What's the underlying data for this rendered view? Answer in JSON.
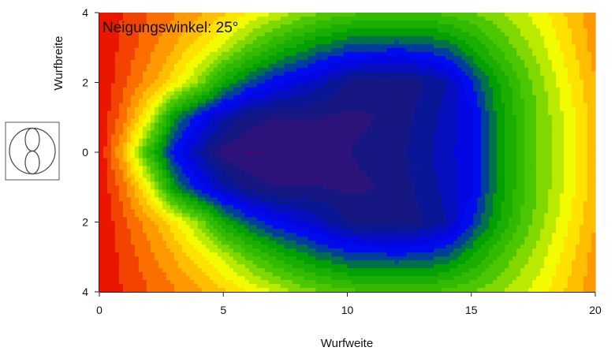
{
  "chart_data": {
    "type": "heatmap",
    "title": "",
    "annotation": "Neigungswinkel: 25°",
    "xlabel": "Wurfweite",
    "ylabel": "Wurfbreite",
    "xlim": [
      0,
      20
    ],
    "ylim": [
      -4,
      4
    ],
    "x_ticks": [
      0,
      5,
      10,
      15,
      20
    ],
    "x_tick_labels": [
      "0",
      "5",
      "10",
      "15",
      "20"
    ],
    "y_ticks": [
      4,
      2,
      0,
      -2,
      -4
    ],
    "y_tick_labels": [
      "4",
      "2",
      "0",
      "2",
      "4"
    ],
    "grid": false,
    "legend": "none",
    "colorscale": [
      "#4b0c6b",
      "#0a1a8a",
      "#0000ff",
      "#00a000",
      "#4cc800",
      "#ffff00",
      "#ff8c00",
      "#e60000"
    ],
    "x": [
      0,
      1,
      1.5,
      2,
      2.5,
      3,
      4,
      5,
      6,
      7,
      8,
      9,
      10,
      11,
      12,
      13,
      14,
      15,
      16,
      17,
      18,
      19,
      20
    ],
    "y": [
      -4,
      -3,
      -2,
      -1,
      0,
      1,
      2,
      3,
      4
    ],
    "z": [
      [
        1.0,
        0.95,
        0.93,
        0.91,
        0.89,
        0.87,
        0.83,
        0.78,
        0.73,
        0.68,
        0.63,
        0.59,
        0.56,
        0.55,
        0.54,
        0.54,
        0.56,
        0.59,
        0.62,
        0.67,
        0.72,
        0.79,
        0.85
      ],
      [
        1.0,
        0.94,
        0.91,
        0.88,
        0.85,
        0.82,
        0.75,
        0.67,
        0.58,
        0.5,
        0.44,
        0.39,
        0.35,
        0.34,
        0.33,
        0.34,
        0.37,
        0.45,
        0.54,
        0.61,
        0.68,
        0.76,
        0.84
      ],
      [
        1.0,
        0.92,
        0.88,
        0.84,
        0.8,
        0.74,
        0.62,
        0.46,
        0.36,
        0.29,
        0.24,
        0.19,
        0.13,
        0.11,
        0.11,
        0.13,
        0.18,
        0.31,
        0.44,
        0.55,
        0.64,
        0.73,
        0.82
      ],
      [
        1.0,
        0.88,
        0.8,
        0.7,
        0.57,
        0.42,
        0.29,
        0.19,
        0.12,
        0.09,
        0.09,
        0.09,
        0.08,
        0.09,
        0.11,
        0.15,
        0.2,
        0.26,
        0.41,
        0.53,
        0.62,
        0.71,
        0.8
      ],
      [
        1.0,
        0.8,
        0.66,
        0.52,
        0.4,
        0.3,
        0.18,
        0.07,
        0.04,
        0.05,
        0.07,
        0.09,
        0.09,
        0.1,
        0.12,
        0.16,
        0.21,
        0.26,
        0.41,
        0.53,
        0.62,
        0.71,
        0.8
      ],
      [
        1.0,
        0.88,
        0.8,
        0.7,
        0.57,
        0.42,
        0.29,
        0.19,
        0.12,
        0.09,
        0.09,
        0.09,
        0.08,
        0.09,
        0.11,
        0.15,
        0.2,
        0.26,
        0.41,
        0.53,
        0.62,
        0.71,
        0.8
      ],
      [
        1.0,
        0.92,
        0.88,
        0.84,
        0.8,
        0.74,
        0.62,
        0.46,
        0.36,
        0.29,
        0.24,
        0.19,
        0.13,
        0.11,
        0.11,
        0.13,
        0.18,
        0.31,
        0.44,
        0.55,
        0.64,
        0.73,
        0.82
      ],
      [
        1.0,
        0.94,
        0.91,
        0.88,
        0.85,
        0.82,
        0.75,
        0.67,
        0.58,
        0.5,
        0.44,
        0.39,
        0.35,
        0.34,
        0.33,
        0.34,
        0.37,
        0.45,
        0.54,
        0.61,
        0.68,
        0.76,
        0.84
      ],
      [
        1.0,
        0.95,
        0.93,
        0.91,
        0.89,
        0.87,
        0.83,
        0.78,
        0.73,
        0.68,
        0.63,
        0.59,
        0.56,
        0.55,
        0.54,
        0.54,
        0.56,
        0.59,
        0.62,
        0.67,
        0.72,
        0.79,
        0.85
      ]
    ]
  },
  "legend_symbol": {
    "icon": "luminous-intensity-distribution-icon"
  }
}
